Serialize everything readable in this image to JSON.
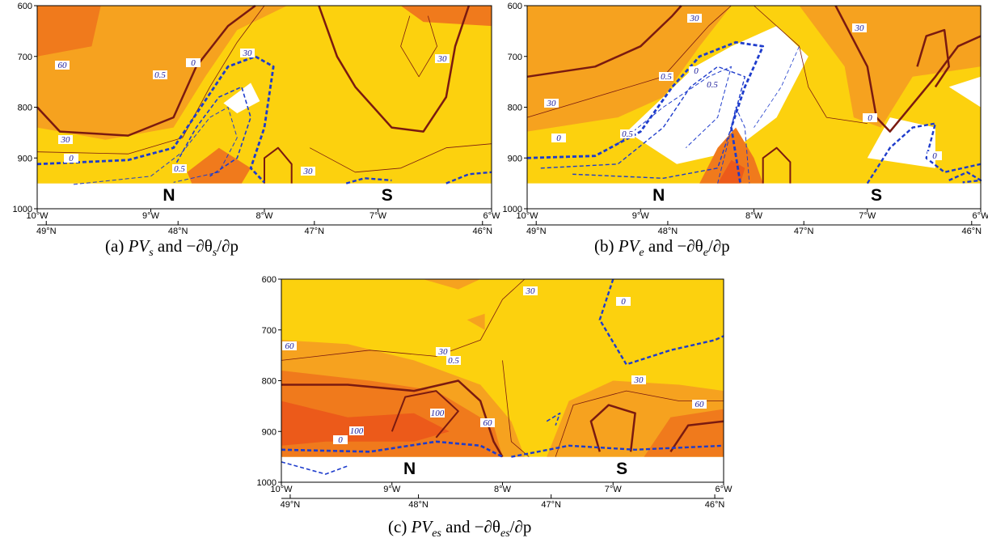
{
  "panels": [
    {
      "caption": [
        "(a) ",
        "PV",
        "s",
        " and −∂θ",
        "s",
        "/∂p"
      ],
      "yticks": [
        "600",
        "700",
        "800",
        "900",
        "1000"
      ],
      "xticks": [
        "10°W",
        "9°W",
        "8°W",
        "7°W",
        "6°W"
      ],
      "latticks": [
        "49°N",
        "48°N",
        "47°N",
        "46°N"
      ],
      "markers": [
        "N",
        "S"
      ],
      "contour_labels": [
        "60",
        "30",
        "0.5",
        "0",
        "30",
        "30",
        "0",
        "0.5",
        "30"
      ]
    },
    {
      "caption": [
        "(b) ",
        "PV",
        "e",
        " and −∂θ",
        "e",
        "/∂p"
      ],
      "yticks": [
        "600",
        "700",
        "800",
        "900",
        "1000"
      ],
      "xticks": [
        "10°W",
        "9°W",
        "8°W",
        "7°W",
        "6°W"
      ],
      "latticks": [
        "49°N",
        "48°N",
        "47°N",
        "46°N"
      ],
      "markers": [
        "N",
        "S"
      ],
      "contour_labels": [
        "30",
        "30",
        "30",
        "0.5",
        "0",
        "0.5",
        "0",
        "0.5",
        "0",
        "0"
      ]
    },
    {
      "caption": [
        "(c) ",
        "PV",
        "es",
        " and −∂θ",
        "es",
        "/∂p"
      ],
      "yticks": [
        "600",
        "700",
        "800",
        "900",
        "1000"
      ],
      "xticks": [
        "10°W",
        "9°W",
        "8°W",
        "7°W",
        "6°W"
      ],
      "latticks": [
        "49°N",
        "48°N",
        "47°N",
        "46°N"
      ],
      "markers": [
        "N",
        "S"
      ],
      "contour_labels": [
        "30",
        "0",
        "60",
        "0.5",
        "30",
        "100",
        "60",
        "30",
        "60",
        "0",
        "100"
      ]
    }
  ]
}
